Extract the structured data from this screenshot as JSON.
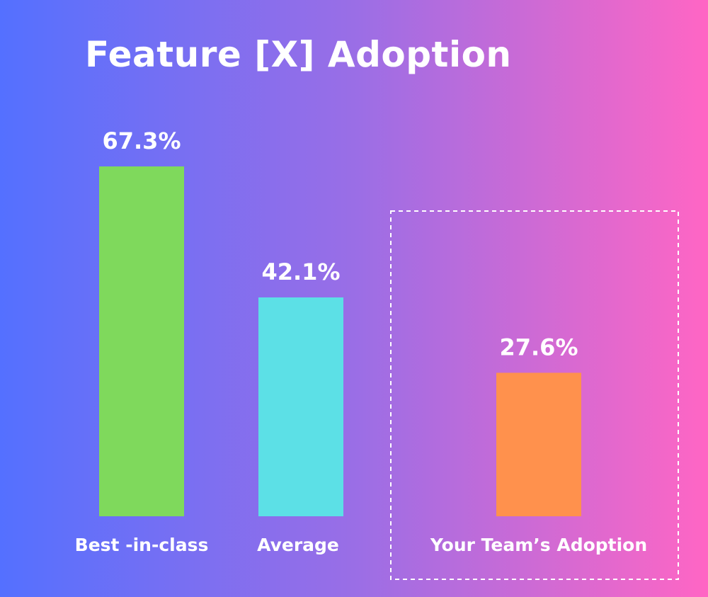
{
  "chart_data": {
    "type": "bar",
    "title": "Feature [X] Adoption",
    "categories": [
      "Best -in-class",
      "Average",
      "Your Team’s Adoption"
    ],
    "values": [
      67.3,
      42.1,
      27.6
    ],
    "value_labels": [
      "67.3%",
      "42.1%",
      "27.6%"
    ],
    "colors": [
      "#7fd95c",
      "#5ce0e6",
      "#ff914d"
    ],
    "highlighted_category": "Your Team’s Adoption",
    "highlight_border_color": "#ffffff",
    "xlabel": "",
    "ylabel": "",
    "ylim": [
      0,
      67.3
    ],
    "grid": false,
    "legend": "none"
  }
}
